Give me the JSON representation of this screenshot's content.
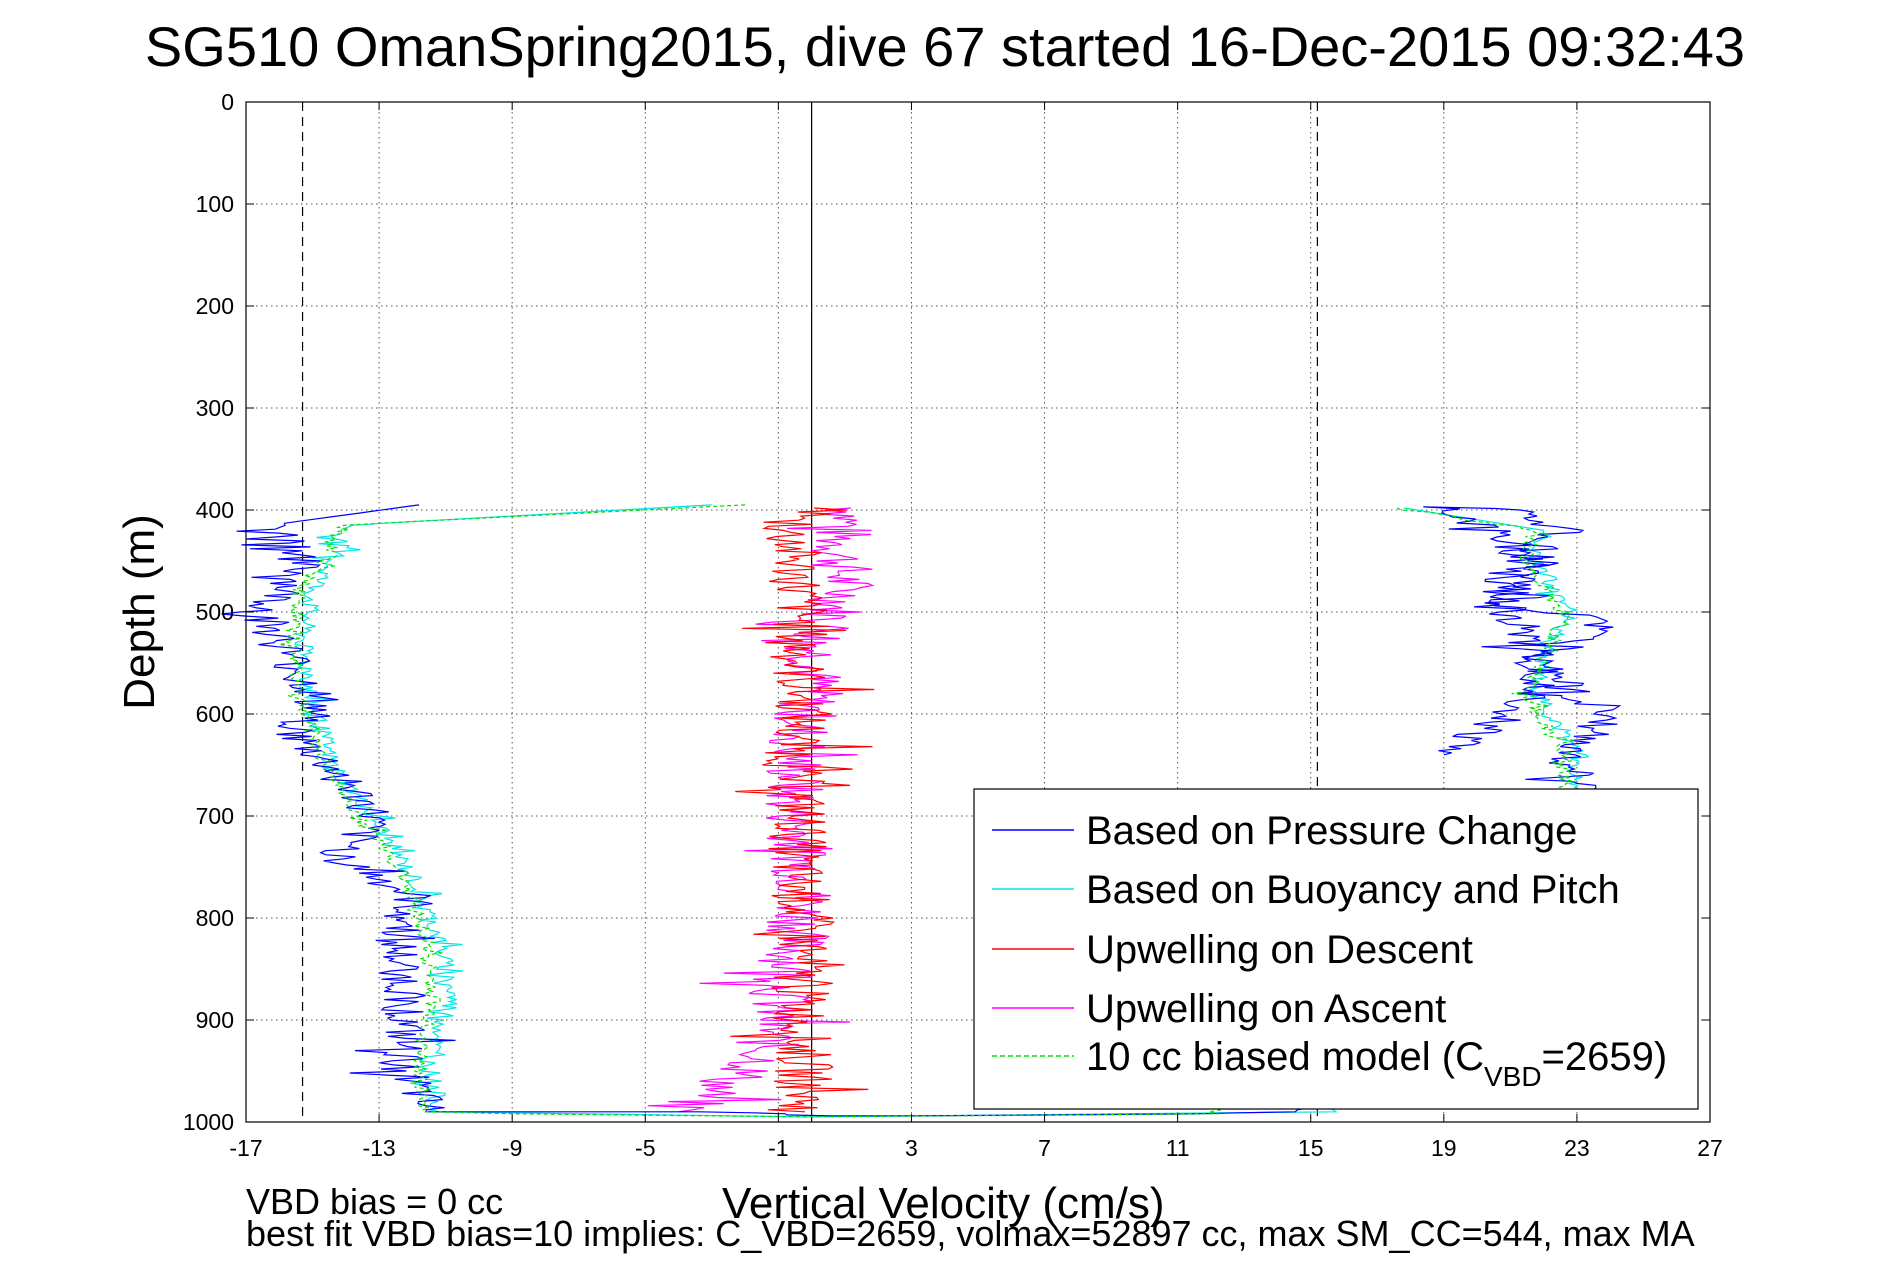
{
  "chart_data": {
    "type": "line",
    "title": "SG510 OmanSpring2015, dive 67 started 16-Dec-2015 09:32:43",
    "xlabel": "Vertical Velocity (cm/s)",
    "ylabel": "Depth (m)",
    "xlim": [
      -17,
      27
    ],
    "ylim": [
      0,
      1000
    ],
    "y_reversed": true,
    "grid": true,
    "legend_position": "bottom-right",
    "x_ticks": [
      "-17",
      "-13",
      "-9",
      "-5",
      "-1",
      "3",
      "7",
      "11",
      "15",
      "19",
      "23",
      "27"
    ],
    "y_ticks": [
      "0",
      "100",
      "200",
      "300",
      "400",
      "500",
      "600",
      "700",
      "800",
      "900",
      "1000"
    ],
    "reference_lines": {
      "vertical_solid": [
        0
      ],
      "vertical_dashed": [
        -15.3,
        15.2
      ]
    },
    "series": [
      {
        "name": "Based on Pressure Change",
        "color": "#0000ff",
        "style": "solid",
        "noise": 0.7,
        "x": [
          -11.8,
          -16.3,
          -15.3,
          -15.6,
          -16.5,
          -15.8,
          -14.8,
          -15.6,
          -14.2,
          -13.2,
          -14.2,
          -12.0,
          -12.5,
          -12.2,
          -12.4,
          -11.6,
          -3.0,
          -1.0,
          0,
          3.0,
          12.0,
          15.0,
          23.5,
          22.5,
          24.0,
          22.0,
          21.0,
          20.5,
          21.0,
          22.0,
          22.5,
          21.0,
          19.0,
          22.0,
          20.5,
          24.0,
          22.0,
          22.0,
          21.5,
          21.0,
          19.0
        ],
        "y": [
          395,
          415,
          440,
          470,
          500,
          540,
          590,
          620,
          660,
          700,
          740,
          780,
          830,
          880,
          940,
          990,
          990,
          992,
          994,
          994,
          992,
          990,
          670,
          650,
          600,
          560,
          500,
          490,
          460,
          430,
          420,
          400,
          397,
          450,
          495,
          505,
          550,
          570,
          590,
          600,
          640
        ]
      },
      {
        "name": "Based on Buoyancy and Pitch",
        "color": "#00e5e5",
        "style": "solid",
        "noise": 0.3,
        "x": [
          -3.0,
          -14.0,
          -14.3,
          -15.0,
          -15.3,
          -15.0,
          -14.4,
          -13.2,
          -12.0,
          -11.2,
          -10.8,
          -11.5,
          -11.2,
          0,
          15.5,
          23.0,
          23.0,
          21.8,
          22.0,
          22.8,
          21.8,
          22.0,
          17.8
        ],
        "y": [
          395,
          415,
          445,
          480,
          530,
          590,
          650,
          700,
          760,
          820,
          880,
          940,
          990,
          995,
          990,
          670,
          640,
          580,
          540,
          500,
          450,
          420,
          398
        ]
      },
      {
        "name": "Upwelling on Descent",
        "color": "#ff0000",
        "style": "solid",
        "noise": 0.9,
        "x": [
          0.8,
          -0.8,
          -0.5,
          -0.3,
          -0.4,
          -0.2,
          -0.6,
          -0.3,
          -0.5,
          -0.2,
          -0.4,
          -0.3,
          -0.2
        ],
        "y": [
          398,
          410,
          450,
          500,
          550,
          600,
          650,
          700,
          750,
          800,
          850,
          900,
          990
        ]
      },
      {
        "name": "Upwelling on Ascent",
        "color": "#ff00ff",
        "style": "solid",
        "noise": 1.0,
        "x": [
          1.2,
          0.8,
          1.0,
          0.2,
          0.0,
          -0.4,
          -0.6,
          -0.3,
          -0.2,
          -0.5,
          -1.0,
          -1.5,
          -4.0
        ],
        "y": [
          398,
          430,
          480,
          530,
          580,
          630,
          680,
          730,
          780,
          830,
          880,
          940,
          990
        ]
      },
      {
        "name": "10 cc biased model (C_VBD=2659)",
        "color": "#00dd00",
        "style": "dashed",
        "noise": 0.25,
        "x": [
          -2.0,
          -14.2,
          -14.5,
          -15.4,
          -15.6,
          -15.3,
          -14.6,
          -13.6,
          -12.2,
          -11.6,
          -11.4,
          -11.8,
          -11.6,
          -9.0,
          0,
          12.0,
          22.6,
          22.6,
          21.5,
          22.2,
          22.6,
          21.5,
          21.6,
          17.6
        ],
        "y": [
          395,
          415,
          445,
          480,
          530,
          590,
          650,
          700,
          760,
          820,
          880,
          940,
          990,
          992,
          995,
          992,
          670,
          640,
          580,
          540,
          500,
          450,
          420,
          398
        ]
      }
    ]
  },
  "legend": {
    "items": [
      {
        "label": "Based on Pressure Change",
        "color": "#0000ff",
        "style": "solid"
      },
      {
        "label": "Based on Buoyancy and Pitch",
        "color": "#00e5e5",
        "style": "solid"
      },
      {
        "label": "Upwelling on Descent",
        "color": "#ff0000",
        "style": "solid"
      },
      {
        "label": "Upwelling on Ascent",
        "color": "#ff00ff",
        "style": "solid"
      },
      {
        "label": "10 cc biased model (C",
        "sub": "VBD",
        "tail": "=2659)",
        "color": "#00dd00",
        "style": "dashed"
      }
    ]
  },
  "footer": {
    "line1": "VBD bias = 0 cc",
    "line2": "best fit VBD bias=10 implies: C_VBD=2659, volmax=52897 cc, max SM_CC=544, max MA"
  }
}
